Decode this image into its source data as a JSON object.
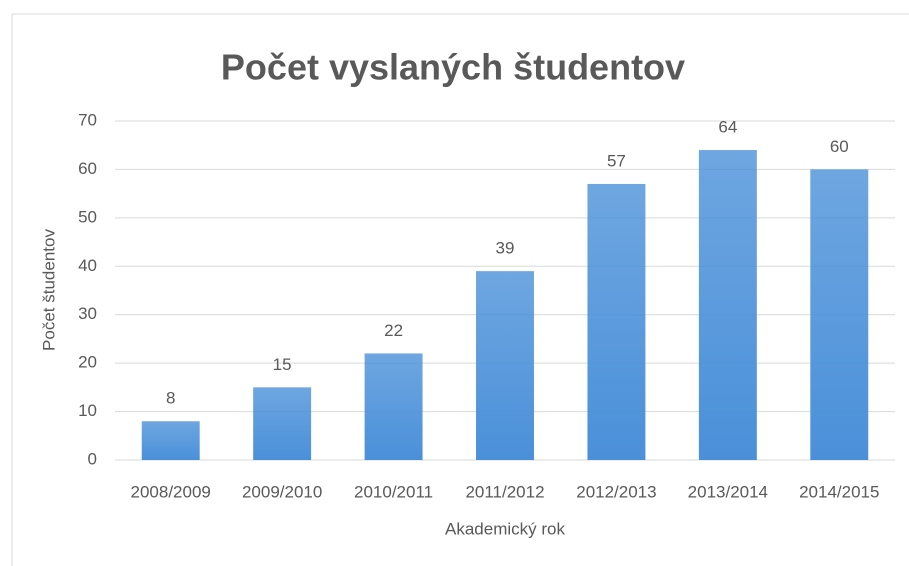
{
  "chart_data": {
    "type": "bar",
    "title": "Počet vyslaných študentov",
    "x_label": "Akademický rok",
    "y_label": "Počet študentov",
    "categories": [
      "2008/2009",
      "2009/2010",
      "2010/2011",
      "2011/2012",
      "2012/2013",
      "2013/2014",
      "2014/2015"
    ],
    "values": [
      8,
      15,
      22,
      39,
      57,
      64,
      60
    ],
    "color": "#4a90d9",
    "ylim": [
      0,
      70
    ],
    "yticks": [
      0,
      10,
      20,
      30,
      40,
      50,
      60,
      70
    ],
    "grid": true
  }
}
